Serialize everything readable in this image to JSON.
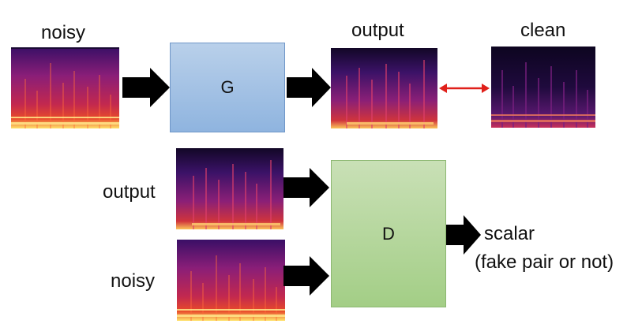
{
  "labels": {
    "noisy_top": "noisy",
    "output_top": "output",
    "clean_top": "clean",
    "output_left": "output",
    "noisy_left": "noisy",
    "scalar": "scalar",
    "scalar_sub": "(fake pair or not)"
  },
  "blocks": {
    "generator": "G",
    "discriminator": "D"
  },
  "colors": {
    "generator_fill": "#a9c4e6",
    "discriminator_fill": "#b6d99c",
    "compare_arrow": "#e0201a",
    "flow_arrow": "#000000"
  },
  "icons": {
    "spectrogram": "spectrogram-image",
    "flow_arrow": "block-arrow-right",
    "compare_arrow": "double-headed-arrow"
  }
}
